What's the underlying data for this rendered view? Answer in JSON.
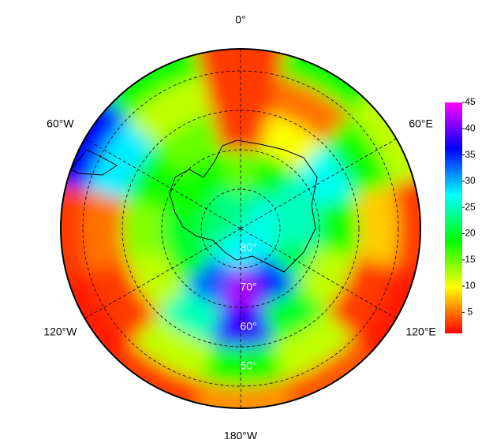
{
  "map": {
    "lon_ticks": [
      {
        "value": 0,
        "label": "0°"
      },
      {
        "value": 60,
        "label": "60°E"
      },
      {
        "value": 120,
        "label": "120°E"
      },
      {
        "value": 180,
        "label": "180°W"
      },
      {
        "value": -120,
        "label": "120°W"
      },
      {
        "value": -60,
        "label": "60°W"
      }
    ],
    "lat_ticks": [
      {
        "value": -80,
        "label": "80°"
      },
      {
        "value": -70,
        "label": "70°"
      },
      {
        "value": -60,
        "label": "60°"
      },
      {
        "value": -50,
        "label": "50°"
      }
    ],
    "lat_edges": [
      -90,
      -80,
      -70,
      -60,
      -50,
      -45
    ],
    "lons": [
      0,
      30,
      60,
      90,
      120,
      150,
      180,
      210,
      240,
      270,
      300,
      330
    ],
    "values": [
      [
        22,
        15,
        3,
        3,
        3
      ],
      [
        25,
        18,
        10,
        5,
        18
      ],
      [
        27,
        25,
        27,
        18,
        12
      ],
      [
        26,
        25,
        18,
        8,
        3
      ],
      [
        27,
        22,
        12,
        3,
        2
      ],
      [
        28,
        35,
        20,
        12,
        4
      ],
      [
        28,
        42,
        38,
        18,
        6
      ],
      [
        27,
        33,
        25,
        12,
        3
      ],
      [
        25,
        20,
        12,
        3,
        2
      ],
      [
        22,
        20,
        14,
        5,
        3
      ],
      [
        22,
        18,
        18,
        28,
        36
      ],
      [
        24,
        18,
        15,
        12,
        18
      ]
    ],
    "clim": [
      1,
      45
    ],
    "colormap": [
      "#ff0000",
      "#ffff00",
      "#00ff00",
      "#00ffff",
      "#0000ff",
      "#ff00ff"
    ],
    "colorbar_ticks": [
      5,
      10,
      15,
      20,
      25,
      30,
      35,
      40,
      45
    ]
  }
}
